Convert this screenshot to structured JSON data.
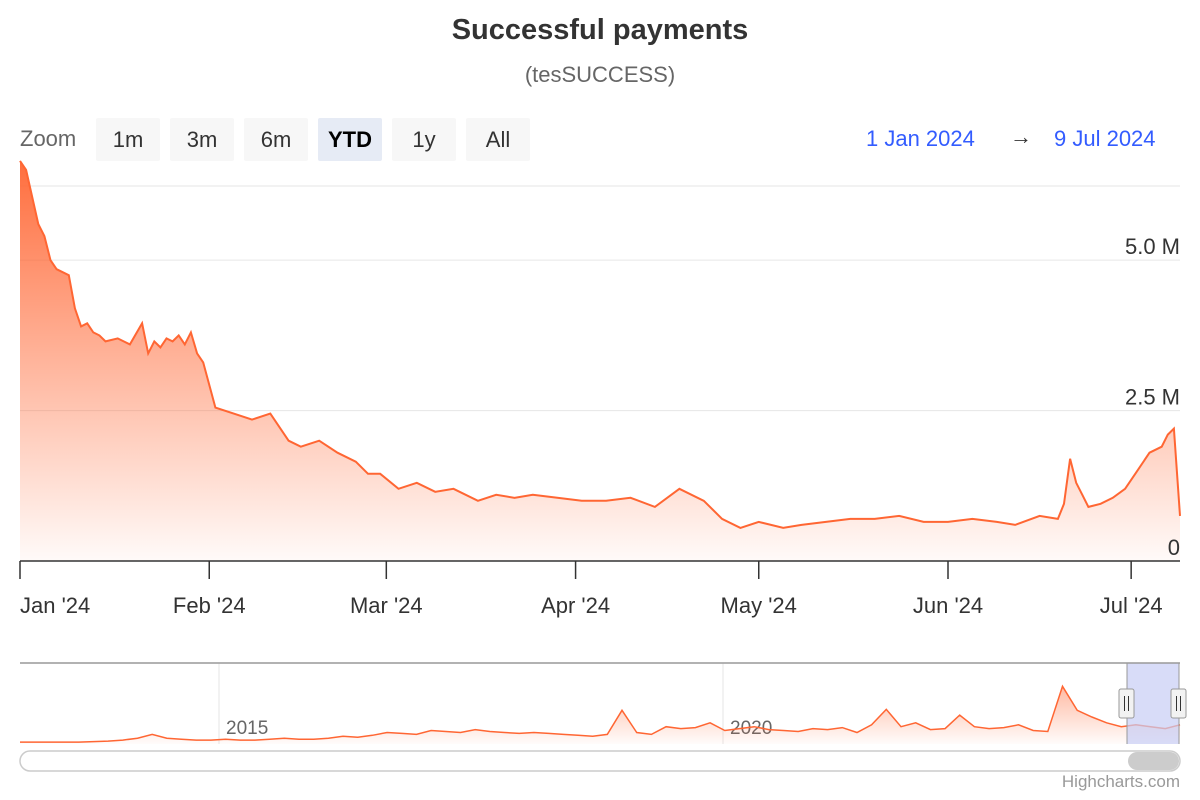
{
  "title": "Successful payments",
  "subtitle": "(tesSUCCESS)",
  "zoom": {
    "label": "Zoom",
    "buttons": [
      "1m",
      "3m",
      "6m",
      "YTD",
      "1y",
      "All"
    ],
    "active": "YTD"
  },
  "range": {
    "from": "1 Jan 2024",
    "arrow": "→",
    "to": "9 Jul 2024"
  },
  "credits": "Highcharts.com",
  "colors": {
    "series": "#ff6633",
    "navigator_mask": "#c8cdf5",
    "range_text": "#335cff"
  },
  "chart_data": {
    "type": "area",
    "title": "Successful payments",
    "subtitle": "(tesSUCCESS)",
    "xlabel": "",
    "ylabel": "",
    "ylim": [
      0,
      6000000
    ],
    "y_ticks": [
      0,
      2500000,
      5000000
    ],
    "y_tick_labels": [
      "0",
      "2.5 M",
      "5.0 M"
    ],
    "x_ticks": [
      "2024-01-01",
      "2024-02-01",
      "2024-03-01",
      "2024-04-01",
      "2024-05-01",
      "2024-06-01",
      "2024-07-01"
    ],
    "x_tick_labels": [
      "Jan '24",
      "Feb '24",
      "Mar '24",
      "Apr '24",
      "May '24",
      "Jun '24",
      "Jul '24"
    ],
    "xrange": [
      "2024-01-01",
      "2024-07-09"
    ],
    "grid": "horizontal",
    "legend": "none",
    "series": [
      {
        "x": [
          "2024-01-01",
          "2024-01-02",
          "2024-01-03",
          "2024-01-04",
          "2024-01-05",
          "2024-01-06",
          "2024-01-07",
          "2024-01-08",
          "2024-01-09",
          "2024-01-10",
          "2024-01-11",
          "2024-01-12",
          "2024-01-13",
          "2024-01-14",
          "2024-01-15",
          "2024-01-17",
          "2024-01-19",
          "2024-01-21",
          "2024-01-22",
          "2024-01-23",
          "2024-01-24",
          "2024-01-25",
          "2024-01-26",
          "2024-01-27",
          "2024-01-28",
          "2024-01-29",
          "2024-01-30",
          "2024-01-31",
          "2024-02-02",
          "2024-02-05",
          "2024-02-08",
          "2024-02-11",
          "2024-02-14",
          "2024-02-16",
          "2024-02-19",
          "2024-02-22",
          "2024-02-25",
          "2024-02-27",
          "2024-02-29",
          "2024-03-03",
          "2024-03-06",
          "2024-03-09",
          "2024-03-12",
          "2024-03-16",
          "2024-03-19",
          "2024-03-22",
          "2024-03-25",
          "2024-03-29",
          "2024-04-02",
          "2024-04-06",
          "2024-04-10",
          "2024-04-14",
          "2024-04-18",
          "2024-04-22",
          "2024-04-25",
          "2024-04-28",
          "2024-05-01",
          "2024-05-05",
          "2024-05-08",
          "2024-05-12",
          "2024-05-16",
          "2024-05-20",
          "2024-05-24",
          "2024-05-28",
          "2024-06-01",
          "2024-06-05",
          "2024-06-09",
          "2024-06-12",
          "2024-06-16",
          "2024-06-19",
          "2024-06-20",
          "2024-06-21",
          "2024-06-22",
          "2024-06-23",
          "2024-06-24",
          "2024-06-26",
          "2024-06-28",
          "2024-06-30",
          "2024-07-02",
          "2024-07-04",
          "2024-07-06",
          "2024-07-07",
          "2024-07-08",
          "2024-07-09"
        ],
        "y": [
          6650000,
          6500000,
          6050000,
          5600000,
          5400000,
          5000000,
          4850000,
          4800000,
          4750000,
          4200000,
          3900000,
          3950000,
          3800000,
          3750000,
          3650000,
          3700000,
          3600000,
          3950000,
          3450000,
          3650000,
          3550000,
          3700000,
          3650000,
          3750000,
          3600000,
          3800000,
          3450000,
          3300000,
          2550000,
          2450000,
          2350000,
          2450000,
          2000000,
          1900000,
          2000000,
          1800000,
          1650000,
          1450000,
          1450000,
          1200000,
          1300000,
          1150000,
          1200000,
          1000000,
          1100000,
          1050000,
          1100000,
          1050000,
          1000000,
          1000000,
          1050000,
          900000,
          1200000,
          1000000,
          700000,
          550000,
          650000,
          550000,
          600000,
          650000,
          700000,
          700000,
          750000,
          650000,
          650000,
          700000,
          650000,
          600000,
          750000,
          700000,
          950000,
          1700000,
          1300000,
          1100000,
          900000,
          950000,
          1050000,
          1200000,
          1500000,
          1800000,
          1900000,
          2100000,
          2200000,
          750000
        ]
      }
    ]
  },
  "navigator": {
    "labels": [
      "2015",
      "2020"
    ]
  }
}
